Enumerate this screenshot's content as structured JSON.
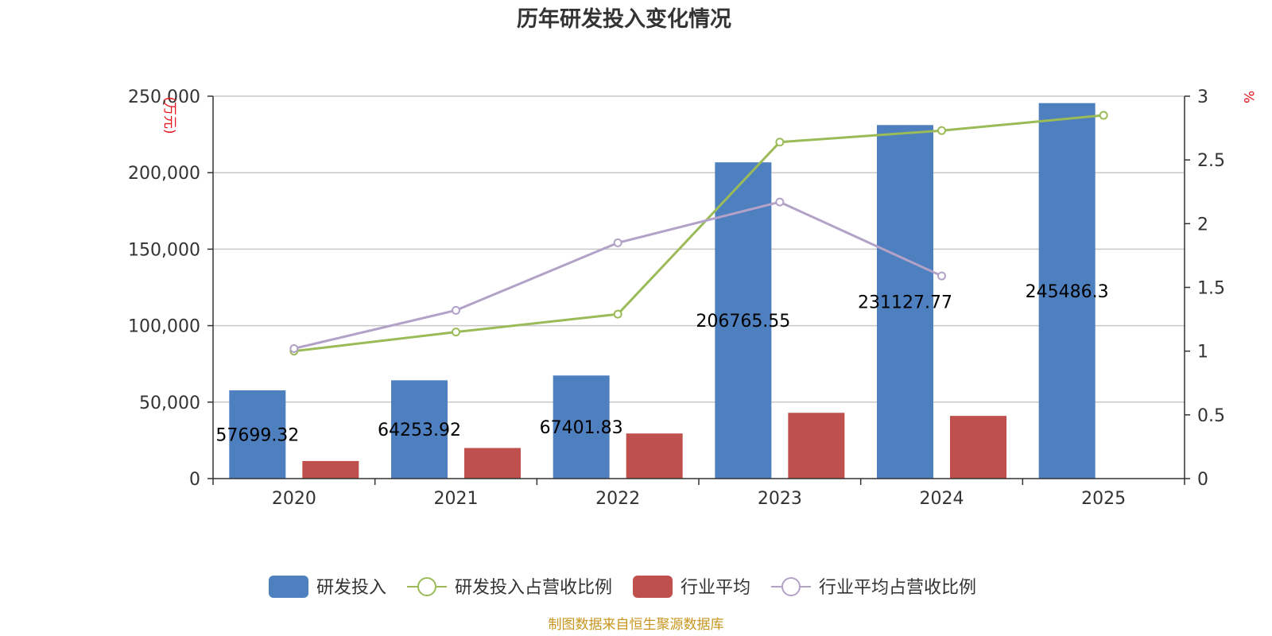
{
  "chart_data": {
    "type": "bar",
    "title": "历年研发投入变化情况",
    "categories": [
      "2020",
      "2021",
      "2022",
      "2023",
      "2024",
      "2025"
    ],
    "y_left": {
      "unit": "(万元)",
      "min": 0,
      "max": 250000,
      "ticks": [
        0,
        50000,
        100000,
        150000,
        200000,
        250000
      ],
      "tick_labels": [
        "0",
        "50,000",
        "100,000",
        "150,000",
        "200,000",
        "250,000"
      ]
    },
    "y_right": {
      "unit": "%",
      "min": 0,
      "max": 3,
      "ticks": [
        0,
        0.5,
        1,
        1.5,
        2,
        2.5,
        3
      ],
      "tick_labels": [
        "0",
        "0.5",
        "1",
        "1.5",
        "2",
        "2.5",
        "3"
      ]
    },
    "series": [
      {
        "name": "研发投入",
        "kind": "bar",
        "axis": "left",
        "color": "#4e7fbe",
        "values": [
          57699.32,
          64253.92,
          67401.83,
          206765.55,
          231127.77,
          245486.3
        ],
        "labels": [
          "57699.32",
          "64253.92",
          "67401.83",
          "206765.55",
          "231127.77",
          "245486.3"
        ]
      },
      {
        "name": "研发投入占营收比例",
        "kind": "line",
        "axis": "right",
        "color": "#9bbb59",
        "values": [
          1.0,
          1.15,
          1.29,
          2.64,
          2.73,
          2.85
        ]
      },
      {
        "name": "行业平均",
        "kind": "bar",
        "axis": "left",
        "color": "#c0504d",
        "values": [
          11500,
          20000,
          29500,
          43000,
          41000,
          null
        ]
      },
      {
        "name": "行业平均占营收比例",
        "kind": "line",
        "axis": "right",
        "color": "#b3a2c7",
        "values": [
          1.02,
          1.32,
          1.85,
          2.17,
          1.59,
          null
        ]
      }
    ],
    "legend_position": "bottom",
    "grid": true
  },
  "source_note": "制图数据来自恒生聚源数据库"
}
